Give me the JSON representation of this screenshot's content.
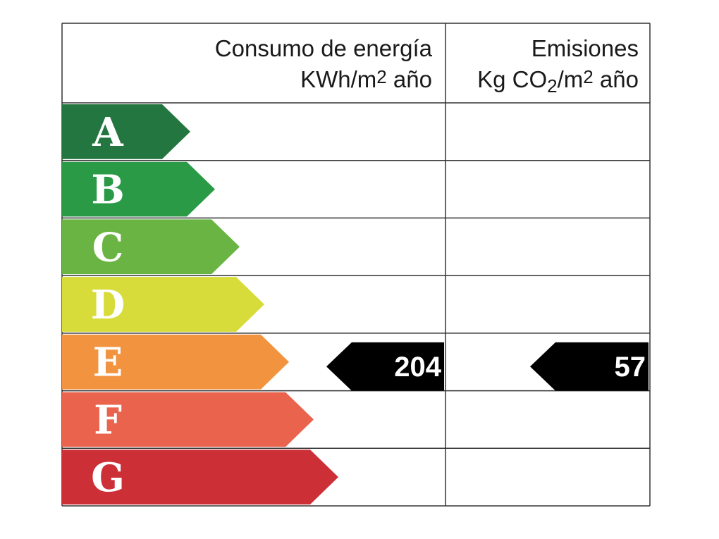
{
  "header": {
    "consumption": {
      "title": "Consumo de energía",
      "unit": [
        "KWh/m",
        "2",
        " año"
      ]
    },
    "emissions": {
      "title": "Emisiones",
      "unit": [
        "Kg CO",
        "2",
        "/m",
        "2",
        " año"
      ]
    }
  },
  "rows": [
    {
      "label": "A",
      "color": "#23763f"
    },
    {
      "label": "B",
      "color": "#2a9a47"
    },
    {
      "label": "C",
      "color": "#6ab443"
    },
    {
      "label": "D",
      "color": "#d8dc3a"
    },
    {
      "label": "E",
      "color": "#f29340",
      "consumption": 204,
      "emissions": 57
    },
    {
      "label": "F",
      "color": "#ea634d"
    },
    {
      "label": "G",
      "color": "#cd2f37"
    }
  ]
}
